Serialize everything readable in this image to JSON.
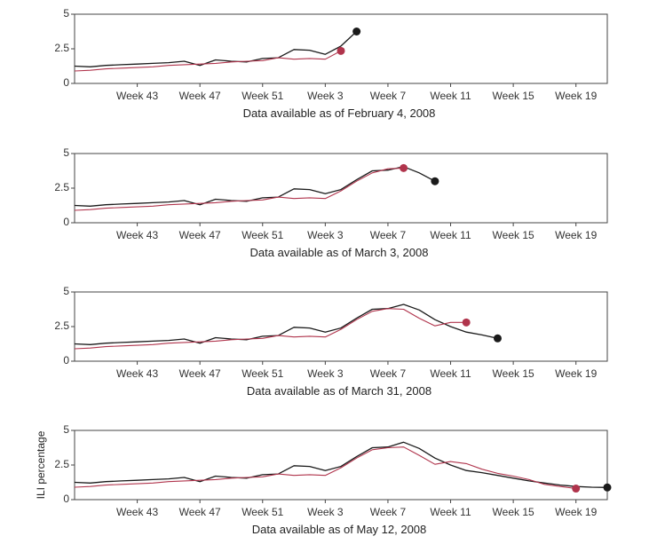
{
  "chart_data": [
    {
      "type": "line",
      "caption": "Data available as of February 4, 2008",
      "ylabel": "",
      "ylim": [
        0,
        5
      ],
      "yticks": [
        {
          "value": 0,
          "label": "0"
        },
        {
          "value": 2.5,
          "label": "2.5"
        },
        {
          "value": 5,
          "label": "5"
        }
      ],
      "xlim": [
        39,
        73
      ],
      "xticks": [
        {
          "value": 43,
          "label": "Week 43"
        },
        {
          "value": 47,
          "label": "Week 47"
        },
        {
          "value": 51,
          "label": "Week 51"
        },
        {
          "value": 55,
          "label": "Week 3"
        },
        {
          "value": 59,
          "label": "Week 7"
        },
        {
          "value": 63,
          "label": "Week 11"
        },
        {
          "value": 67,
          "label": "Week 15"
        },
        {
          "value": 71,
          "label": "Week 19"
        }
      ],
      "series": [
        {
          "color": "#1a1a1a",
          "x": [
            39,
            40,
            41,
            42,
            43,
            44,
            45,
            46,
            47,
            48,
            49,
            50,
            51,
            52,
            53,
            54,
            55,
            56,
            57
          ],
          "y": [
            1.25,
            1.2,
            1.3,
            1.35,
            1.4,
            1.45,
            1.5,
            1.6,
            1.3,
            1.7,
            1.6,
            1.55,
            1.8,
            1.85,
            2.45,
            2.4,
            2.1,
            2.7,
            3.75
          ],
          "end_marker": true
        },
        {
          "color": "#b0344c",
          "x": [
            39,
            40,
            41,
            42,
            43,
            44,
            45,
            46,
            47,
            48,
            49,
            50,
            51,
            52,
            53,
            54,
            55,
            56
          ],
          "y": [
            0.9,
            0.95,
            1.05,
            1.1,
            1.15,
            1.2,
            1.3,
            1.35,
            1.4,
            1.45,
            1.55,
            1.6,
            1.65,
            1.85,
            1.75,
            1.8,
            1.75,
            2.35
          ],
          "end_marker": true
        }
      ]
    },
    {
      "type": "line",
      "caption": "Data available as of March 3, 2008",
      "ylabel": "",
      "ylim": [
        0,
        5
      ],
      "yticks": [
        {
          "value": 0,
          "label": "0"
        },
        {
          "value": 2.5,
          "label": "2.5"
        },
        {
          "value": 5,
          "label": "5"
        }
      ],
      "xlim": [
        39,
        73
      ],
      "xticks": [
        {
          "value": 43,
          "label": "Week 43"
        },
        {
          "value": 47,
          "label": "Week 47"
        },
        {
          "value": 51,
          "label": "Week 51"
        },
        {
          "value": 55,
          "label": "Week 3"
        },
        {
          "value": 59,
          "label": "Week 7"
        },
        {
          "value": 63,
          "label": "Week 11"
        },
        {
          "value": 67,
          "label": "Week 15"
        },
        {
          "value": 71,
          "label": "Week 19"
        }
      ],
      "series": [
        {
          "color": "#1a1a1a",
          "x": [
            39,
            40,
            41,
            42,
            43,
            44,
            45,
            46,
            47,
            48,
            49,
            50,
            51,
            52,
            53,
            54,
            55,
            56,
            57,
            58,
            59,
            60,
            61,
            62
          ],
          "y": [
            1.25,
            1.2,
            1.3,
            1.35,
            1.4,
            1.45,
            1.5,
            1.6,
            1.3,
            1.7,
            1.6,
            1.55,
            1.8,
            1.85,
            2.45,
            2.4,
            2.1,
            2.4,
            3.1,
            3.75,
            3.8,
            4.05,
            3.6,
            3.0
          ],
          "end_marker": true
        },
        {
          "color": "#b0344c",
          "x": [
            39,
            40,
            41,
            42,
            43,
            44,
            45,
            46,
            47,
            48,
            49,
            50,
            51,
            52,
            53,
            54,
            55,
            56,
            57,
            58,
            59,
            60
          ],
          "y": [
            0.9,
            0.95,
            1.05,
            1.1,
            1.15,
            1.2,
            1.3,
            1.35,
            1.4,
            1.45,
            1.55,
            1.6,
            1.65,
            1.85,
            1.75,
            1.8,
            1.75,
            2.3,
            3.0,
            3.6,
            3.9,
            3.95
          ],
          "end_marker": true
        }
      ]
    },
    {
      "type": "line",
      "caption": "Data available as of March 31, 2008",
      "ylabel": "",
      "ylim": [
        0,
        5
      ],
      "yticks": [
        {
          "value": 0,
          "label": "0"
        },
        {
          "value": 2.5,
          "label": "2.5"
        },
        {
          "value": 5,
          "label": "5"
        }
      ],
      "xlim": [
        39,
        73
      ],
      "xticks": [
        {
          "value": 43,
          "label": "Week 43"
        },
        {
          "value": 47,
          "label": "Week 47"
        },
        {
          "value": 51,
          "label": "Week 51"
        },
        {
          "value": 55,
          "label": "Week 3"
        },
        {
          "value": 59,
          "label": "Week 7"
        },
        {
          "value": 63,
          "label": "Week 11"
        },
        {
          "value": 67,
          "label": "Week 15"
        },
        {
          "value": 71,
          "label": "Week 19"
        }
      ],
      "series": [
        {
          "color": "#1a1a1a",
          "x": [
            39,
            40,
            41,
            42,
            43,
            44,
            45,
            46,
            47,
            48,
            49,
            50,
            51,
            52,
            53,
            54,
            55,
            56,
            57,
            58,
            59,
            60,
            61,
            62,
            63,
            64,
            65,
            66
          ],
          "y": [
            1.25,
            1.2,
            1.3,
            1.35,
            1.4,
            1.45,
            1.5,
            1.6,
            1.3,
            1.7,
            1.6,
            1.55,
            1.8,
            1.85,
            2.45,
            2.4,
            2.1,
            2.4,
            3.1,
            3.75,
            3.8,
            4.1,
            3.7,
            3.0,
            2.5,
            2.1,
            1.9,
            1.65
          ],
          "end_marker": true
        },
        {
          "color": "#b0344c",
          "x": [
            39,
            40,
            41,
            42,
            43,
            44,
            45,
            46,
            47,
            48,
            49,
            50,
            51,
            52,
            53,
            54,
            55,
            56,
            57,
            58,
            59,
            60,
            61,
            62,
            63,
            64
          ],
          "y": [
            0.9,
            0.95,
            1.05,
            1.1,
            1.15,
            1.2,
            1.3,
            1.35,
            1.4,
            1.45,
            1.55,
            1.6,
            1.65,
            1.85,
            1.75,
            1.8,
            1.75,
            2.3,
            3.0,
            3.6,
            3.8,
            3.75,
            3.1,
            2.55,
            2.8,
            2.8
          ],
          "end_marker": true
        }
      ]
    },
    {
      "type": "line",
      "caption": "Data available as of May 12, 2008",
      "ylabel": "ILI percentage",
      "ylim": [
        0,
        5
      ],
      "yticks": [
        {
          "value": 0,
          "label": "0"
        },
        {
          "value": 2.5,
          "label": "2.5"
        },
        {
          "value": 5,
          "label": "5"
        }
      ],
      "xlim": [
        39,
        73
      ],
      "xticks": [
        {
          "value": 43,
          "label": "Week 43"
        },
        {
          "value": 47,
          "label": "Week 47"
        },
        {
          "value": 51,
          "label": "Week 51"
        },
        {
          "value": 55,
          "label": "Week 3"
        },
        {
          "value": 59,
          "label": "Week 7"
        },
        {
          "value": 63,
          "label": "Week 11"
        },
        {
          "value": 67,
          "label": "Week 15"
        },
        {
          "value": 71,
          "label": "Week 19"
        }
      ],
      "series": [
        {
          "color": "#1a1a1a",
          "x": [
            39,
            40,
            41,
            42,
            43,
            44,
            45,
            46,
            47,
            48,
            49,
            50,
            51,
            52,
            53,
            54,
            55,
            56,
            57,
            58,
            59,
            60,
            61,
            62,
            63,
            64,
            65,
            66,
            67,
            68,
            69,
            70,
            71,
            72,
            73
          ],
          "y": [
            1.25,
            1.2,
            1.3,
            1.35,
            1.4,
            1.45,
            1.5,
            1.6,
            1.3,
            1.7,
            1.6,
            1.55,
            1.8,
            1.85,
            2.45,
            2.4,
            2.1,
            2.4,
            3.1,
            3.75,
            3.8,
            4.15,
            3.7,
            3.0,
            2.5,
            2.1,
            1.95,
            1.75,
            1.55,
            1.35,
            1.2,
            1.05,
            0.95,
            0.9,
            0.88
          ],
          "end_marker": true
        },
        {
          "color": "#b0344c",
          "x": [
            39,
            40,
            41,
            42,
            43,
            44,
            45,
            46,
            47,
            48,
            49,
            50,
            51,
            52,
            53,
            54,
            55,
            56,
            57,
            58,
            59,
            60,
            61,
            62,
            63,
            64,
            65,
            66,
            67,
            68,
            69,
            70,
            71
          ],
          "y": [
            0.9,
            0.95,
            1.05,
            1.1,
            1.15,
            1.2,
            1.3,
            1.35,
            1.4,
            1.45,
            1.55,
            1.6,
            1.65,
            1.85,
            1.75,
            1.8,
            1.75,
            2.3,
            3.0,
            3.6,
            3.75,
            3.8,
            3.2,
            2.55,
            2.75,
            2.6,
            2.2,
            1.9,
            1.7,
            1.45,
            1.1,
            0.95,
            0.8
          ],
          "end_marker": true
        }
      ]
    }
  ]
}
